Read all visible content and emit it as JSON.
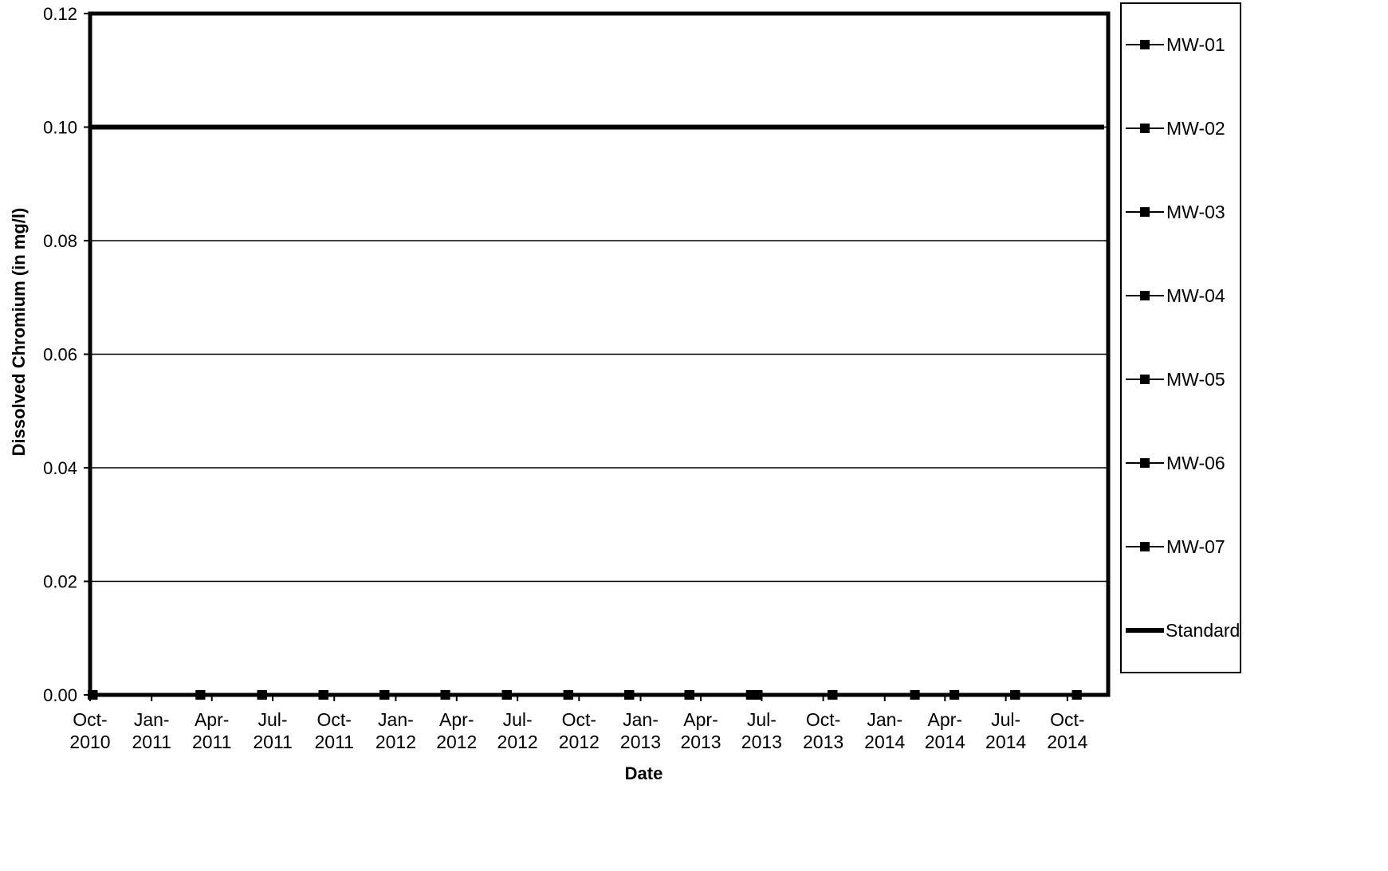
{
  "chart_data": {
    "type": "line",
    "title": "",
    "xlabel": "Date",
    "ylabel": "Dissolved Chromium (in mg/l)",
    "ylim": [
      0,
      0.12
    ],
    "y_ticks": [
      "0.00",
      "0.02",
      "0.04",
      "0.06",
      "0.08",
      "0.10",
      "0.12"
    ],
    "x_range": [
      "2010-10-01",
      "2014-12-01"
    ],
    "x_ticks": [
      {
        "date": "2010-10-01",
        "line1": "Oct-",
        "line2": "2010"
      },
      {
        "date": "2011-01-01",
        "line1": "Jan-",
        "line2": "2011"
      },
      {
        "date": "2011-04-01",
        "line1": "Apr-",
        "line2": "2011"
      },
      {
        "date": "2011-07-01",
        "line1": "Jul-",
        "line2": "2011"
      },
      {
        "date": "2011-10-01",
        "line1": "Oct-",
        "line2": "2011"
      },
      {
        "date": "2012-01-01",
        "line1": "Jan-",
        "line2": "2012"
      },
      {
        "date": "2012-04-01",
        "line1": "Apr-",
        "line2": "2012"
      },
      {
        "date": "2012-07-01",
        "line1": "Jul-",
        "line2": "2012"
      },
      {
        "date": "2012-10-01",
        "line1": "Oct-",
        "line2": "2012"
      },
      {
        "date": "2013-01-01",
        "line1": "Jan-",
        "line2": "2013"
      },
      {
        "date": "2013-04-01",
        "line1": "Apr-",
        "line2": "2013"
      },
      {
        "date": "2013-07-01",
        "line1": "Jul-",
        "line2": "2013"
      },
      {
        "date": "2013-10-01",
        "line1": "Oct-",
        "line2": "2013"
      },
      {
        "date": "2014-01-01",
        "line1": "Jan-",
        "line2": "2014"
      },
      {
        "date": "2014-04-01",
        "line1": "Apr-",
        "line2": "2014"
      },
      {
        "date": "2014-07-01",
        "line1": "Jul-",
        "line2": "2014"
      },
      {
        "date": "2014-10-01",
        "line1": "Oct-",
        "line2": "2014"
      }
    ],
    "grid": true,
    "legend_position": "right",
    "series": [
      {
        "name": "MW-01",
        "marker": "square",
        "x": [
          "2010-10-05",
          "2011-03-15",
          "2011-06-15",
          "2011-09-15",
          "2011-12-15",
          "2012-03-15",
          "2012-06-15",
          "2012-09-15",
          "2012-12-15",
          "2013-03-15",
          "2013-06-15",
          "2013-06-25",
          "2013-10-15",
          "2014-02-15",
          "2014-04-15",
          "2014-07-15",
          "2014-10-15"
        ],
        "y": [
          0,
          0,
          0,
          0,
          0,
          0,
          0,
          0,
          0,
          0,
          0,
          0,
          0,
          0,
          0,
          0,
          0
        ]
      },
      {
        "name": "MW-02",
        "marker": "square",
        "x": [
          "2010-10-05",
          "2011-03-15",
          "2011-06-15",
          "2011-09-15",
          "2011-12-15",
          "2012-03-15",
          "2012-06-15",
          "2012-09-15",
          "2012-12-15",
          "2013-03-15",
          "2013-06-15",
          "2013-06-25",
          "2013-10-15",
          "2014-02-15",
          "2014-04-15",
          "2014-07-15",
          "2014-10-15"
        ],
        "y": [
          0,
          0,
          0,
          0,
          0,
          0,
          0,
          0,
          0,
          0,
          0,
          0,
          0,
          0,
          0,
          0,
          0
        ]
      },
      {
        "name": "MW-03",
        "marker": "square",
        "x": [
          "2010-10-05",
          "2011-03-15",
          "2011-06-15",
          "2011-09-15",
          "2011-12-15",
          "2012-03-15",
          "2012-06-15",
          "2012-09-15",
          "2012-12-15",
          "2013-03-15",
          "2013-06-15",
          "2013-06-25",
          "2013-10-15",
          "2014-02-15",
          "2014-04-15",
          "2014-07-15",
          "2014-10-15"
        ],
        "y": [
          0,
          0,
          0,
          0,
          0,
          0,
          0,
          0,
          0,
          0,
          0,
          0,
          0,
          0,
          0,
          0,
          0
        ]
      },
      {
        "name": "MW-04",
        "marker": "square",
        "x": [
          "2010-10-05",
          "2011-03-15",
          "2011-06-15",
          "2011-09-15",
          "2011-12-15",
          "2012-03-15",
          "2012-06-15",
          "2012-09-15",
          "2012-12-15",
          "2013-03-15",
          "2013-06-15",
          "2013-06-25",
          "2013-10-15",
          "2014-02-15",
          "2014-04-15",
          "2014-07-15",
          "2014-10-15"
        ],
        "y": [
          0,
          0,
          0,
          0,
          0,
          0,
          0,
          0,
          0,
          0,
          0,
          0,
          0,
          0,
          0,
          0,
          0
        ]
      },
      {
        "name": "MW-05",
        "marker": "square",
        "x": [
          "2010-10-05",
          "2011-03-15",
          "2011-06-15",
          "2011-09-15",
          "2011-12-15",
          "2012-03-15",
          "2012-06-15",
          "2012-09-15",
          "2012-12-15",
          "2013-03-15",
          "2013-06-15",
          "2013-06-25",
          "2013-10-15",
          "2014-02-15",
          "2014-04-15",
          "2014-07-15",
          "2014-10-15"
        ],
        "y": [
          0,
          0,
          0,
          0,
          0,
          0,
          0,
          0,
          0,
          0,
          0,
          0,
          0,
          0,
          0,
          0,
          0
        ]
      },
      {
        "name": "MW-06",
        "marker": "square",
        "x": [
          "2010-10-05",
          "2011-03-15",
          "2011-06-15",
          "2011-09-15",
          "2011-12-15",
          "2012-03-15",
          "2012-06-15",
          "2012-09-15",
          "2012-12-15",
          "2013-03-15",
          "2013-06-15",
          "2013-06-25",
          "2013-10-15",
          "2014-02-15",
          "2014-04-15",
          "2014-07-15",
          "2014-10-15"
        ],
        "y": [
          0,
          0,
          0,
          0,
          0,
          0,
          0,
          0,
          0,
          0,
          0,
          0,
          0,
          0,
          0,
          0,
          0
        ]
      },
      {
        "name": "MW-07",
        "marker": "square",
        "x": [
          "2010-10-05",
          "2011-03-15",
          "2011-06-15",
          "2011-09-15",
          "2011-12-15",
          "2012-03-15",
          "2012-06-15",
          "2012-09-15",
          "2012-12-15",
          "2013-03-15",
          "2013-06-15",
          "2013-06-25",
          "2013-10-15",
          "2014-02-15",
          "2014-04-15",
          "2014-07-15",
          "2014-10-15"
        ],
        "y": [
          0,
          0,
          0,
          0,
          0,
          0,
          0,
          0,
          0,
          0,
          0,
          0,
          0,
          0,
          0,
          0,
          0
        ]
      },
      {
        "name": "Standard",
        "marker": "none",
        "x": [
          "2010-10-01",
          "2014-11-25"
        ],
        "y": [
          0.1,
          0.1
        ]
      }
    ]
  },
  "colors": {
    "line": "#000000",
    "background": "#ffffff",
    "grid": "#000000"
  }
}
